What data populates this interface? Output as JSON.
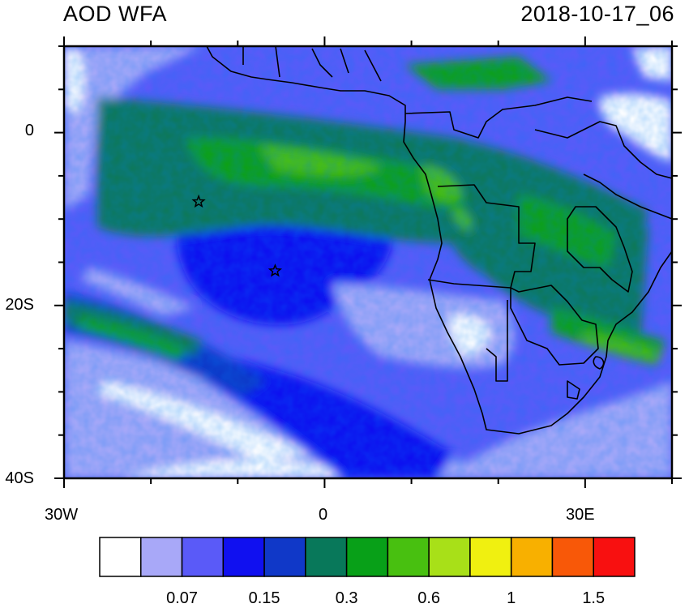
{
  "map": {
    "title_left": "AOD WFA",
    "title_right": "2018-10-17_06",
    "lat_labels": [
      "0",
      "20S",
      "40S"
    ],
    "lon_labels": [
      "30W",
      "0",
      "30E"
    ],
    "extent": {
      "lon_min": -30,
      "lon_max": 40,
      "lat_min": -40,
      "lat_max": 10
    },
    "markers": [
      {
        "name": "site-star-1",
        "lon": -14.5,
        "lat": -8.0
      },
      {
        "name": "site-star-2",
        "lon": -5.7,
        "lat": -16.0
      }
    ]
  },
  "colorbar": {
    "colors": [
      "#ffffff",
      "#a8a8f8",
      "#5a5af8",
      "#1010f0",
      "#1038c8",
      "#08785a",
      "#08a018",
      "#48c010",
      "#a8e018",
      "#f0f010",
      "#f8b000",
      "#f85808",
      "#f81010"
    ],
    "tick_labels": [
      "0.07",
      "0.15",
      "0.3",
      "0.6",
      "1",
      "1.5"
    ],
    "tick_bins": [
      2,
      4,
      6,
      8,
      10,
      12
    ]
  }
}
